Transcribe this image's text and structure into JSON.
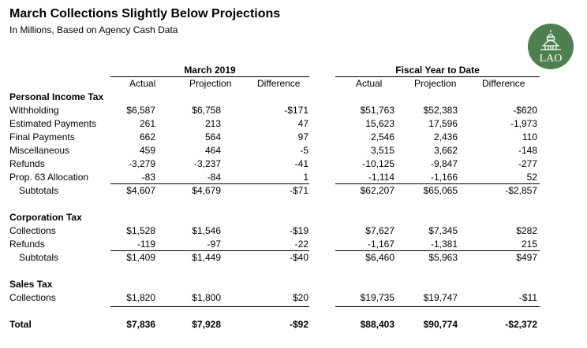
{
  "title": "March Collections Slightly Below Projections",
  "subtitle": "In Millions, Based on Agency Cash Data",
  "logo": {
    "text": "LAO",
    "color": "#4e7f4e"
  },
  "groups": {
    "march": "March 2019",
    "fytd": "Fiscal Year to Date"
  },
  "columns": [
    "Actual",
    "Projection",
    "Difference",
    "Actual",
    "Projection",
    "Difference"
  ],
  "sections": {
    "pit": {
      "heading": "Personal Income Tax",
      "rows": [
        {
          "label": "Withholding",
          "values": [
            "$6,587",
            "$6,758",
            "-$171",
            "$51,763",
            "$52,383",
            "-$620"
          ]
        },
        {
          "label": "Estimated Payments",
          "values": [
            "261",
            "213",
            "47",
            "15,623",
            "17,596",
            "-1,973"
          ]
        },
        {
          "label": "Final Payments",
          "values": [
            "662",
            "564",
            "97",
            "2,546",
            "2,436",
            "110"
          ]
        },
        {
          "label": "Miscellaneous",
          "values": [
            "459",
            "464",
            "-5",
            "3,515",
            "3,662",
            "-148"
          ]
        },
        {
          "label": "Refunds",
          "values": [
            "-3,279",
            "-3,237",
            "-41",
            "-10,125",
            "-9,847",
            "-277"
          ]
        },
        {
          "label": "Prop. 63 Allocation",
          "values": [
            "-83",
            "-84",
            "1",
            "-1,114",
            "-1,166",
            "52"
          ]
        }
      ],
      "subtotal": {
        "label": "Subtotals",
        "values": [
          "$4,607",
          "$4,679",
          "-$71",
          "$62,207",
          "$65,065",
          "-$2,857"
        ]
      }
    },
    "corp": {
      "heading": "Corporation Tax",
      "rows": [
        {
          "label": "Collections",
          "values": [
            "$1,528",
            "$1,546",
            "-$19",
            "$7,627",
            "$7,345",
            "$282"
          ]
        },
        {
          "label": "Refunds",
          "values": [
            "-119",
            "-97",
            "-22",
            "-1,167",
            "-1,381",
            "215"
          ]
        }
      ],
      "subtotal": {
        "label": "Subtotals",
        "values": [
          "$1,409",
          "$1,449",
          "-$40",
          "$6,460",
          "$5,963",
          "$497"
        ]
      }
    },
    "sales": {
      "heading": "Sales Tax",
      "rows": [
        {
          "label": "Collections",
          "values": [
            "$1,820",
            "$1,800",
            "$20",
            "$19,735",
            "$19,747",
            "-$11"
          ]
        }
      ]
    }
  },
  "total": {
    "label": "Total",
    "values": [
      "$7,836",
      "$7,928",
      "-$92",
      "$88,403",
      "$90,774",
      "-$2,372"
    ]
  }
}
